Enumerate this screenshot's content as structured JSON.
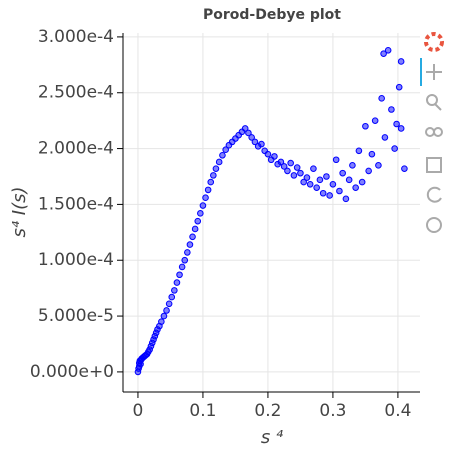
{
  "chart_data": {
    "type": "scatter",
    "title": "Porod-Debye plot",
    "x_label": "s ⁴",
    "y_label": "s⁴ I(s)",
    "series": [
      {
        "color": "#0000ff",
        "x": [
          0,
          0.001,
          0.002,
          0.002,
          0.003,
          0.004,
          0.005,
          0.006,
          0.008,
          0.01,
          0.012,
          0.014,
          0.016,
          0.018,
          0.02,
          0.022,
          0.024,
          0.026,
          0.028,
          0.03,
          0.033,
          0.036,
          0.04,
          0.044,
          0.048,
          0.052,
          0.056,
          0.06,
          0.064,
          0.068,
          0.072,
          0.076,
          0.08,
          0.084,
          0.088,
          0.092,
          0.096,
          0.1,
          0.104,
          0.108,
          0.112,
          0.116,
          0.12,
          0.125,
          0.13,
          0.135,
          0.14,
          0.145,
          0.15,
          0.155,
          0.16,
          0.165,
          0.17,
          0.175,
          0.18,
          0.185,
          0.19,
          0.195,
          0.2,
          0.205,
          0.21,
          0.215,
          0.22,
          0.225,
          0.23,
          0.235,
          0.24,
          0.245,
          0.25,
          0.255,
          0.26,
          0.265,
          0.27,
          0.275,
          0.28,
          0.285,
          0.29,
          0.295,
          0.3,
          0.305,
          0.31,
          0.315,
          0.32,
          0.325,
          0.33,
          0.335,
          0.34,
          0.345,
          0.35,
          0.355,
          0.36,
          0.365,
          0.37,
          0.375,
          0.378,
          0.38,
          0.385,
          0.39,
          0.395,
          0.398,
          0.402,
          0.405,
          0.41,
          0.405
        ],
        "y": [
          0,
          3e-06,
          5e-06,
          8e-06,
          1e-05,
          7e-06,
          1.1e-05,
          1.2e-05,
          1.3e-05,
          1.4e-05,
          1.5e-05,
          1.6e-05,
          1.8e-05,
          2e-05,
          2.3e-05,
          2.6e-05,
          2.9e-05,
          3.2e-05,
          3.5e-05,
          3.8e-05,
          4.1e-05,
          4.5e-05,
          5e-05,
          5.5e-05,
          6.1e-05,
          6.7e-05,
          7.3e-05,
          8e-05,
          8.7e-05,
          9.4e-05,
          0.0001,
          0.000107,
          0.000114,
          0.000121,
          0.000128,
          0.000135,
          0.000142,
          0.000149,
          0.000156,
          0.000163,
          0.00017,
          0.000176,
          0.000182,
          0.000188,
          0.000194,
          0.000199,
          0.000203,
          0.000206,
          0.000209,
          0.000212,
          0.000215,
          0.000218,
          0.000214,
          0.00021,
          0.000206,
          0.000202,
          0.000204,
          0.000198,
          0.000195,
          0.00019,
          0.000193,
          0.000186,
          0.000188,
          0.000184,
          0.00018,
          0.000187,
          0.000176,
          0.000183,
          0.000178,
          0.00017,
          0.000174,
          0.000168,
          0.000182,
          0.000165,
          0.000172,
          0.00016,
          0.000175,
          0.000158,
          0.000168,
          0.00019,
          0.000162,
          0.000178,
          0.000155,
          0.000172,
          0.000185,
          0.000165,
          0.000198,
          0.00017,
          0.00022,
          0.00018,
          0.000195,
          0.000225,
          0.000185,
          0.000245,
          0.000285,
          0.00021,
          0.000288,
          0.000235,
          0.0002,
          0.000222,
          0.000255,
          0.000218,
          0.000182,
          0.000278
        ]
      }
    ],
    "xlim": [
      -0.023,
      0.434
    ],
    "xticks": [
      0,
      0.1,
      0.2,
      0.3,
      0.4
    ],
    "ylim": [
      -1.8e-05,
      0.0003035
    ],
    "yticks": [
      {
        "value": 0,
        "label": "0.000e+0"
      },
      {
        "value": 5e-05,
        "label": "5.000e-5"
      },
      {
        "value": 0.0001,
        "label": "1.000e-4"
      },
      {
        "value": 0.00015,
        "label": "1.500e-4"
      },
      {
        "value": 0.0002,
        "label": "2.000e-4"
      },
      {
        "value": 0.00025,
        "label": "2.500e-4"
      },
      {
        "value": 0.0003,
        "label": "3.000e-4"
      }
    ],
    "grid": true
  }
}
